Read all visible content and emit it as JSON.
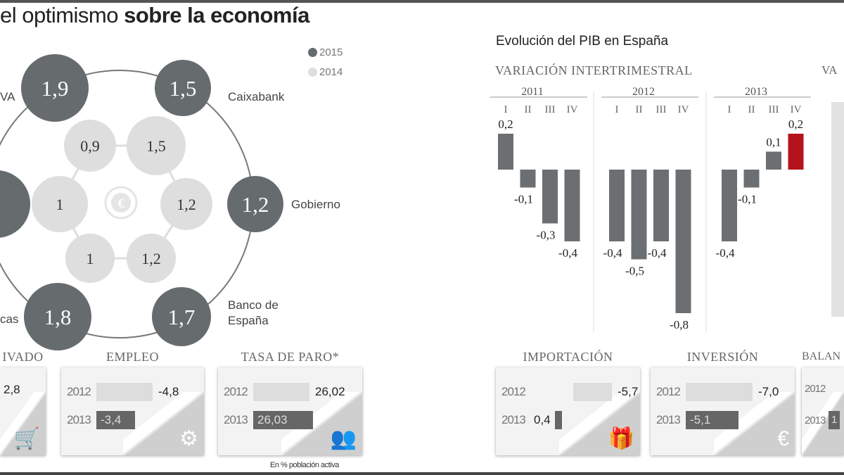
{
  "header": {
    "title_light": "el optimismo",
    "title_bold": "sobre la economía"
  },
  "forecast_wheel": {
    "legend": [
      {
        "label": "2015",
        "color": "#666b6e"
      },
      {
        "label": "2014",
        "color": "#dedede"
      }
    ],
    "outer_2015": [
      {
        "value": "1,9",
        "label": "VA"
      },
      {
        "value": "1,5",
        "label": "Caixabank"
      },
      {
        "value": "1,2",
        "label": "Gobierno"
      },
      {
        "value": "1,7",
        "label": "Banco de España"
      },
      {
        "value": "1,8",
        "label": "cas"
      },
      {
        "value": "",
        "label": ""
      }
    ],
    "inner_2014": [
      "0,9",
      "1,5",
      "1",
      "1,2",
      "1",
      "1,2"
    ],
    "center_icon": "euro-cycle-icon"
  },
  "cards": [
    {
      "title": "IVADO",
      "rows": [
        {
          "year": "",
          "value": "2,8"
        }
      ],
      "icon": "shopping-cart-icon"
    },
    {
      "title": "EMPLEO",
      "rows": [
        {
          "year": "2012",
          "value": "-4,8"
        },
        {
          "year": "2013",
          "value": "-3,4"
        }
      ],
      "icon": "gears-icon"
    },
    {
      "title": "TASA DE PARO*",
      "rows": [
        {
          "year": "2012",
          "value": "26,02"
        },
        {
          "year": "2013",
          "value": "26,03"
        }
      ],
      "icon": "people-icon",
      "footnote": "En % población activa"
    },
    {
      "title": "IMPORTACIÓN",
      "rows": [
        {
          "year": "2012",
          "value": "-5,7"
        },
        {
          "year": "2013",
          "value": "0,4"
        }
      ],
      "icon": "package-icon"
    },
    {
      "title": "INVERSIÓN",
      "rows": [
        {
          "year": "2012",
          "value": "-7,0"
        },
        {
          "year": "2013",
          "value": "-5,1"
        }
      ],
      "icon": "euro-plant-icon"
    },
    {
      "title": "BALAN",
      "rows": [
        {
          "year": "2012",
          "value": ""
        },
        {
          "year": "2013",
          "value": "1"
        }
      ],
      "icon": ""
    }
  ],
  "chart_data": {
    "type": "bar",
    "title": "Evolución del PIB en España",
    "subtitle": "VARIACIÓN INTERTRIMESTRAL",
    "groups": [
      "2011",
      "2012",
      "2013"
    ],
    "categories": [
      "I",
      "II",
      "III",
      "IV"
    ],
    "series": [
      {
        "group": "2011",
        "values": [
          0.2,
          -0.1,
          -0.3,
          -0.4
        ],
        "labels": [
          "0,2",
          "-0,1",
          "-0,3",
          "-0,4"
        ]
      },
      {
        "group": "2012",
        "values": [
          -0.4,
          -0.5,
          -0.4,
          -0.8
        ],
        "labels": [
          "-0,4",
          "-0,5",
          "-0,4",
          "-0,8"
        ]
      },
      {
        "group": "2013",
        "values": [
          -0.4,
          -0.1,
          0.1,
          0.2
        ],
        "labels": [
          "-0,4",
          "-0,1",
          "0,1",
          "0,2"
        ]
      }
    ],
    "bar_color": "#6b6f72",
    "highlight_color": "#b5121b",
    "highlight": "2013-IV",
    "second_panel_title": "VA"
  }
}
